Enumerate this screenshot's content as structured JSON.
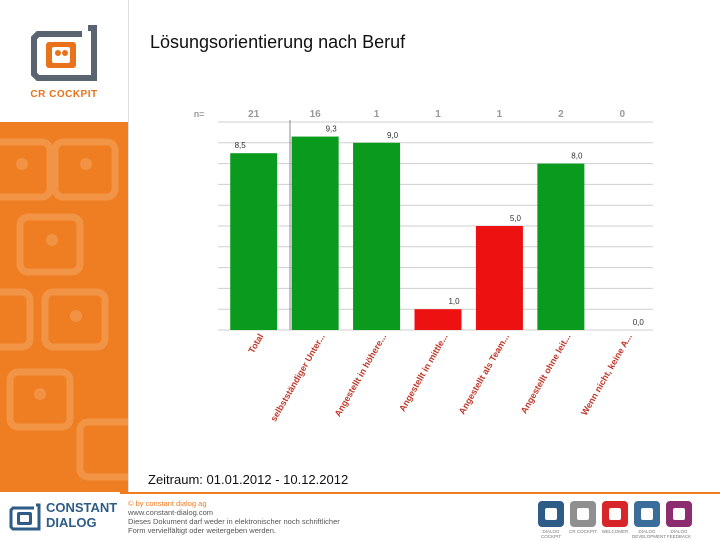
{
  "brand": {
    "app_name": "CR COCKPIT",
    "company_name_line1": "CONSTANT",
    "company_name_line2": "DIALOG",
    "legal_line1": "© by constant dialog ag",
    "legal_line2": "www.constant-dialog.com",
    "legal_line3": "Dieses Dokument darf weder in elektronischer noch schriftlicher",
    "legal_line4": "Form vervielfältigt oder weitergeben werden."
  },
  "page": {
    "title": "Lösungsorientierung nach Beruf",
    "period": "Zeitraum: 01.01.2012 - 10.12.2012"
  },
  "footer_badges": [
    {
      "label": "DIALOG COCKPIT",
      "color": "#2e5c87"
    },
    {
      "label": "CR COCKPIT",
      "color": "#8f8f8f"
    },
    {
      "label": "WELCOMER",
      "color": "#d8252a"
    },
    {
      "label": "DIALOG DEVELOPMENT",
      "color": "#3b6d9a"
    },
    {
      "label": "DIALOG FEEDBACK",
      "color": "#8b2d6e"
    }
  ],
  "chart_data": {
    "type": "bar",
    "title": "Lösungsorientierung nach Beruf",
    "n_label": "n=",
    "categories": [
      "Total",
      "selbstständiger Unter...",
      "Angestellt in höhere...",
      "Angestellt in mittle...",
      "Angestellt als Team...",
      "Angestellt ohne leit...",
      "Wenn nicht, keine A..."
    ],
    "n_values": [
      "21",
      "16",
      "1",
      "1",
      "1",
      "2",
      "0"
    ],
    "values": [
      8.5,
      9.3,
      9.0,
      1.0,
      5.0,
      8.0,
      0.0
    ],
    "value_labels": [
      "8,5",
      "9,3",
      "9,0",
      "1,0",
      "5,0",
      "8,0",
      "0,0"
    ],
    "colors": [
      "#0a9a1e",
      "#0a9a1e",
      "#0a9a1e",
      "#ee1111",
      "#ee1111",
      "#0a9a1e",
      "#0a9a1e"
    ],
    "ylim": [
      0,
      10
    ],
    "gridlines": true,
    "legend": "none"
  }
}
